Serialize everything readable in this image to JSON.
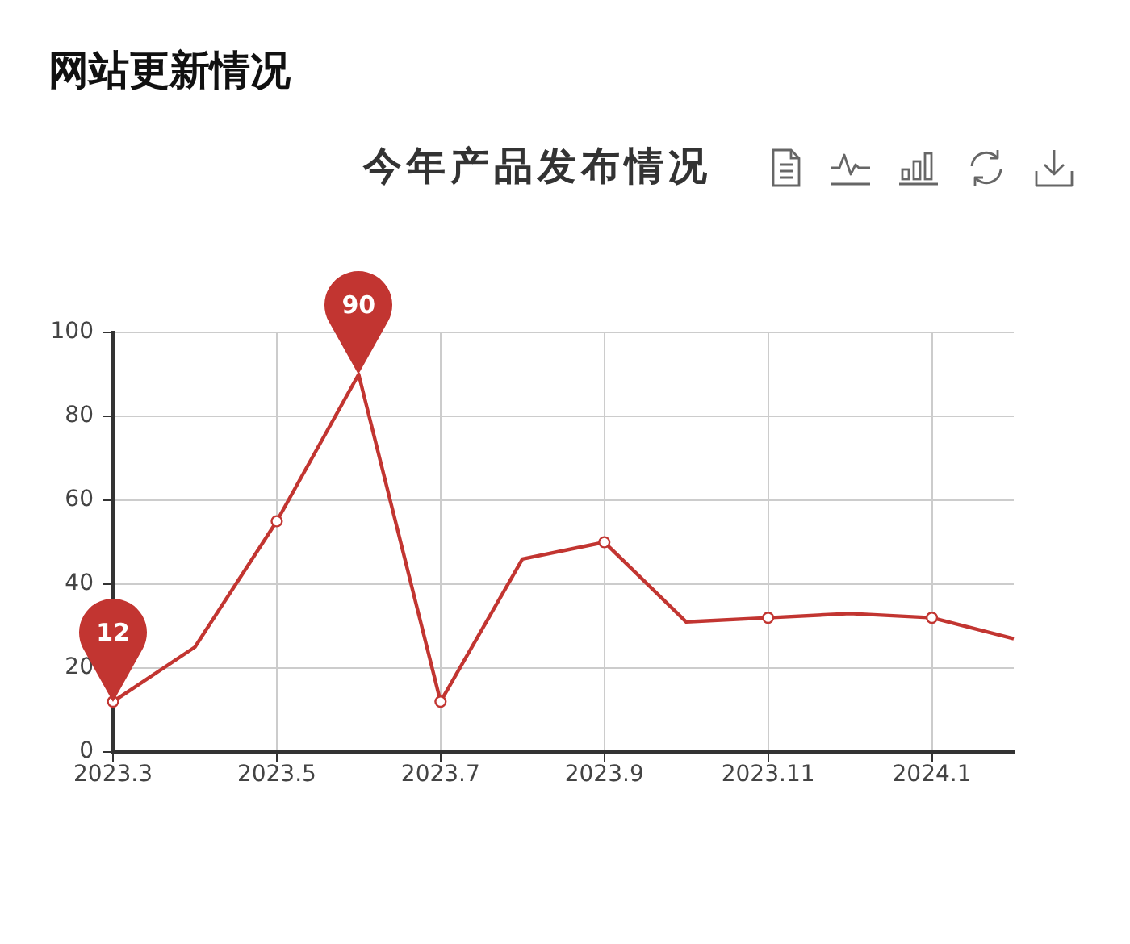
{
  "chart_data": {
    "type": "line",
    "title": "今年产品发布情况",
    "annotations": [
      "网站更新情况"
    ],
    "categories": [
      "2023.3",
      null,
      "2023.5",
      null,
      "2023.7",
      null,
      "2023.9",
      null,
      "2023.11",
      null,
      "2024.1",
      null
    ],
    "values": [
      12,
      25,
      55,
      90,
      12,
      46,
      50,
      31,
      32,
      33,
      32,
      27
    ],
    "color": "#c23531",
    "value_labels": [
      "12",
      null,
      null,
      "90",
      null,
      null,
      null,
      null,
      null,
      null,
      null,
      null
    ],
    "ylim": [
      0,
      100
    ],
    "yticks": [
      0,
      20,
      40,
      60,
      80,
      100
    ],
    "grid": true,
    "marker": "circle",
    "line_style": "solid"
  }
}
